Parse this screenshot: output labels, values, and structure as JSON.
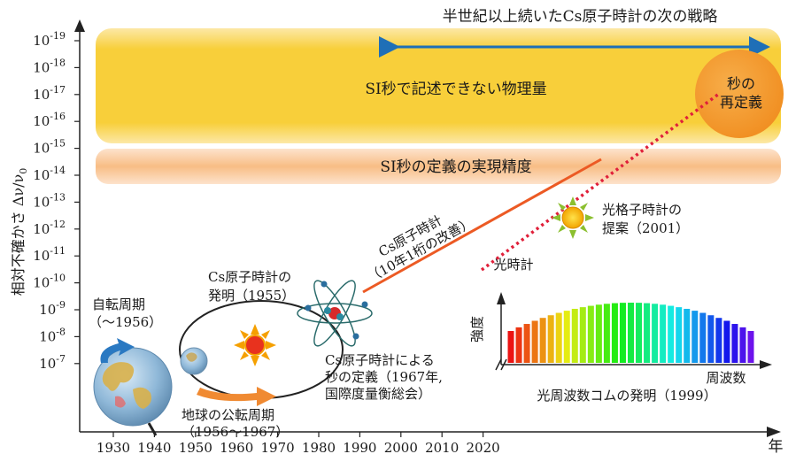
{
  "header": {
    "strategy_caption": "半世紀以上続いたCs原子時計の次の戦略"
  },
  "bands": {
    "unmeasurable": "SI秒で記述できない物理量",
    "realization": "SI秒の定義の実現精度"
  },
  "redefinition": {
    "line1": "秒の",
    "line2": "再定義"
  },
  "axes": {
    "ylabel": "相対不確かさ Δν/ν",
    "ylabel_sub": "0",
    "xunit": "年",
    "x_ticks": [
      "1930",
      "1940",
      "1950",
      "1960",
      "1970",
      "1980",
      "1990",
      "2000",
      "2010",
      "2020"
    ],
    "y_ticks": [
      {
        "base": "10",
        "exp": "-19"
      },
      {
        "base": "10",
        "exp": "-18"
      },
      {
        "base": "10",
        "exp": "-17"
      },
      {
        "base": "10",
        "exp": "-16"
      },
      {
        "base": "10",
        "exp": "-15"
      },
      {
        "base": "10",
        "exp": "-14"
      },
      {
        "base": "10",
        "exp": "-13"
      },
      {
        "base": "10",
        "exp": "-12"
      },
      {
        "base": "10",
        "exp": "-11"
      },
      {
        "base": "10",
        "exp": "-10"
      },
      {
        "base": "10",
        "exp": "-9"
      },
      {
        "base": "10",
        "exp": "-8"
      },
      {
        "base": "10",
        "exp": "-7"
      }
    ]
  },
  "annotations": {
    "rotation": {
      "line1": "自転周期",
      "line2": "（～1956）"
    },
    "revolution": {
      "line1": "地球の公転周期",
      "line2": "（1956～1967）"
    },
    "cs_invention": {
      "line1": "Cs原子時計の",
      "line2": "発明（1955）"
    },
    "cs_definition": {
      "line1": "Cs原子時計による",
      "line2": "秒の定義（1967年,",
      "line3": "国際度量衡総会）"
    },
    "cs_trend": {
      "line1": "Cs原子時計",
      "line2": "（10年1桁の改善）"
    },
    "optical_lattice": {
      "line1": "光格子時計の",
      "line2": "提案（2001）"
    },
    "optical_clock": "光時計",
    "comb": {
      "ylabel": "強度",
      "xlabel": "周波数",
      "caption": "光周波数コムの発明（1999）"
    }
  },
  "colors": {
    "yellow_band": "#f7c92e",
    "orange_band": "#f8be88",
    "cs_line": "#ec5a24",
    "optical_line": "#e0203a",
    "arrow": "#1f6fb7",
    "orange_circle": "#f49b2a"
  }
}
